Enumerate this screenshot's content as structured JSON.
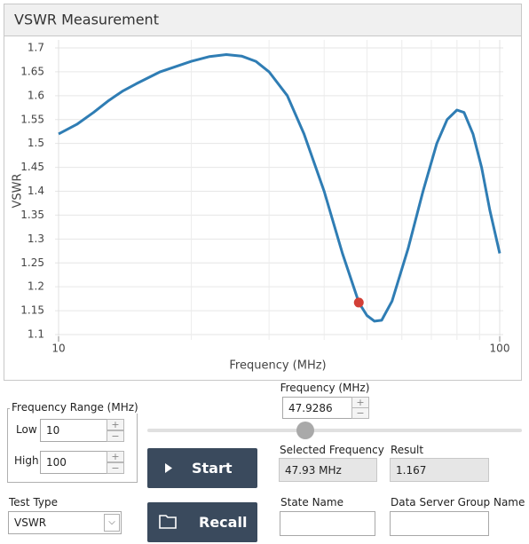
{
  "header": {
    "title": "VSWR Measurement"
  },
  "chart_data": {
    "type": "line",
    "x_label": "Frequency (MHz)",
    "y_label": "VSWR",
    "x": [
      10,
      11,
      12,
      13,
      14,
      15,
      17,
      19,
      20,
      22,
      24,
      26,
      28,
      30,
      33,
      36,
      40,
      44,
      47.93,
      50,
      52,
      54,
      57,
      62,
      67,
      72,
      76,
      80,
      83,
      87,
      91,
      95,
      100
    ],
    "values": [
      1.52,
      1.54,
      1.565,
      1.59,
      1.61,
      1.625,
      1.65,
      1.665,
      1.672,
      1.682,
      1.686,
      1.683,
      1.672,
      1.65,
      1.6,
      1.52,
      1.4,
      1.27,
      1.167,
      1.14,
      1.128,
      1.13,
      1.17,
      1.28,
      1.4,
      1.5,
      1.55,
      1.57,
      1.565,
      1.52,
      1.45,
      1.36,
      1.27
    ],
    "color": "#2f7db4",
    "marker": {
      "x": 47.9286,
      "y": 1.167,
      "color": "#d23f36"
    },
    "xscale": "log",
    "xlim": [
      10,
      100
    ],
    "xticks": [
      10,
      100
    ],
    "xticks_minor": [
      20,
      30,
      40,
      50,
      60,
      70,
      80,
      90
    ],
    "ylim": [
      1.1,
      1.7
    ],
    "yticks": [
      1.1,
      1.15,
      1.2,
      1.25,
      1.3,
      1.35,
      1.4,
      1.45,
      1.5,
      1.55,
      1.6,
      1.65,
      1.7
    ],
    "grid": true
  },
  "controls": {
    "frequency": {
      "label": "Frequency (MHz)"
    },
    "range": {
      "label": "Frequency Range (MHz)",
      "low_label": "Low",
      "low": 10,
      "high_label": "High",
      "high": 100
    },
    "start": "Start",
    "recall": "Recall",
    "selected_frequency": {
      "label": "Selected Frequency",
      "value": "47.93 MHz"
    },
    "result": {
      "label": "Result"
    },
    "test_type": {
      "label": "Test Type",
      "value": "VSWR"
    },
    "state_name": {
      "label": "State Name"
    },
    "data_server": {
      "label": "Data Server Group Name"
    }
  }
}
